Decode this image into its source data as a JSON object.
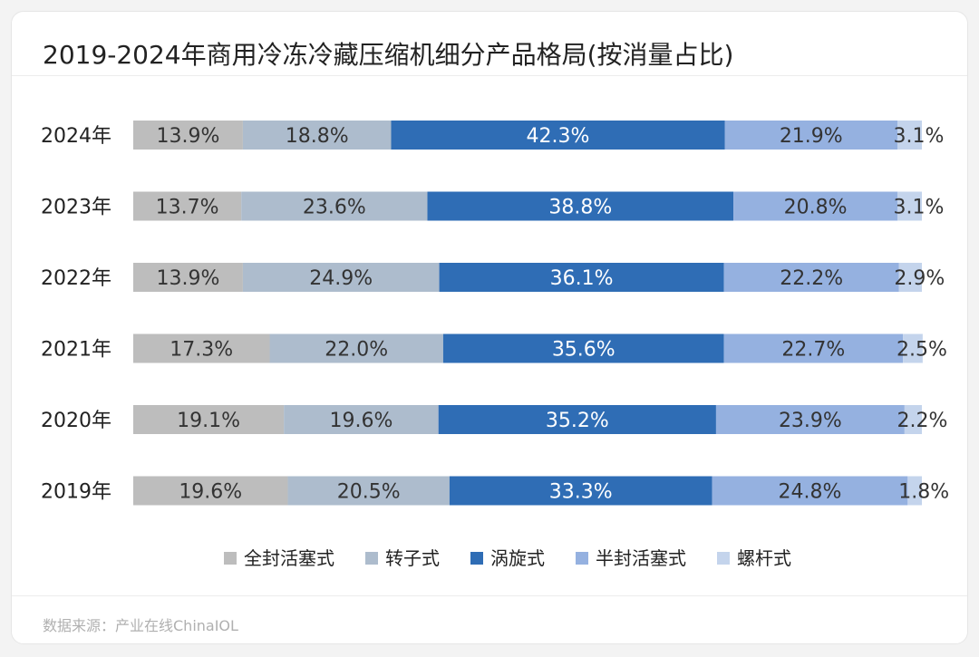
{
  "chart_data": {
    "type": "bar",
    "orientation": "horizontal",
    "stacked": true,
    "title": "2019-2024年商用冷冻冷藏压缩机细分产品格局(按消量占比)",
    "categories": [
      "2024年",
      "2023年",
      "2022年",
      "2021年",
      "2020年",
      "2019年"
    ],
    "series": [
      {
        "name": "全封活塞式",
        "color": "#bdbdbd",
        "label_color": "#333333",
        "values": [
          13.9,
          13.7,
          13.9,
          17.3,
          19.1,
          19.6
        ],
        "labels": [
          "13.9%",
          "13.7%",
          "13.9%",
          "17.3%",
          "19.1%",
          "19.6%"
        ]
      },
      {
        "name": "转子式",
        "color": "#adbccd",
        "label_color": "#333333",
        "values": [
          18.8,
          23.6,
          24.9,
          22.0,
          19.6,
          20.5
        ],
        "labels": [
          "18.8%",
          "23.6%",
          "24.9%",
          "22.0%",
          "19.6%",
          "20.5%"
        ]
      },
      {
        "name": "涡旋式",
        "color": "#2f6db5",
        "label_color": "#ffffff",
        "values": [
          42.3,
          38.8,
          36.1,
          35.6,
          35.2,
          33.3
        ],
        "labels": [
          "42.3%",
          "38.8%",
          "36.1%",
          "35.6%",
          "35.2%",
          "33.3%"
        ]
      },
      {
        "name": "半封活塞式",
        "color": "#95b1e0",
        "label_color": "#333333",
        "values": [
          21.9,
          20.8,
          22.2,
          22.7,
          23.9,
          24.8
        ],
        "labels": [
          "21.9%",
          "20.8%",
          "22.2%",
          "22.7%",
          "23.9%",
          "24.8%"
        ]
      },
      {
        "name": "螺杆式",
        "color": "#c4d4ec",
        "label_color": "#333333",
        "values": [
          3.1,
          3.1,
          2.9,
          2.5,
          2.2,
          1.8
        ],
        "labels": [
          "3.1%",
          "3.1%",
          "2.9%",
          "2.5%",
          "2.2%",
          "1.8%"
        ]
      }
    ],
    "xlim": [
      0,
      100
    ],
    "legend": "bottom-center",
    "grid": false
  },
  "footer": {
    "source": "数据来源：产业在线ChinaIOL"
  }
}
